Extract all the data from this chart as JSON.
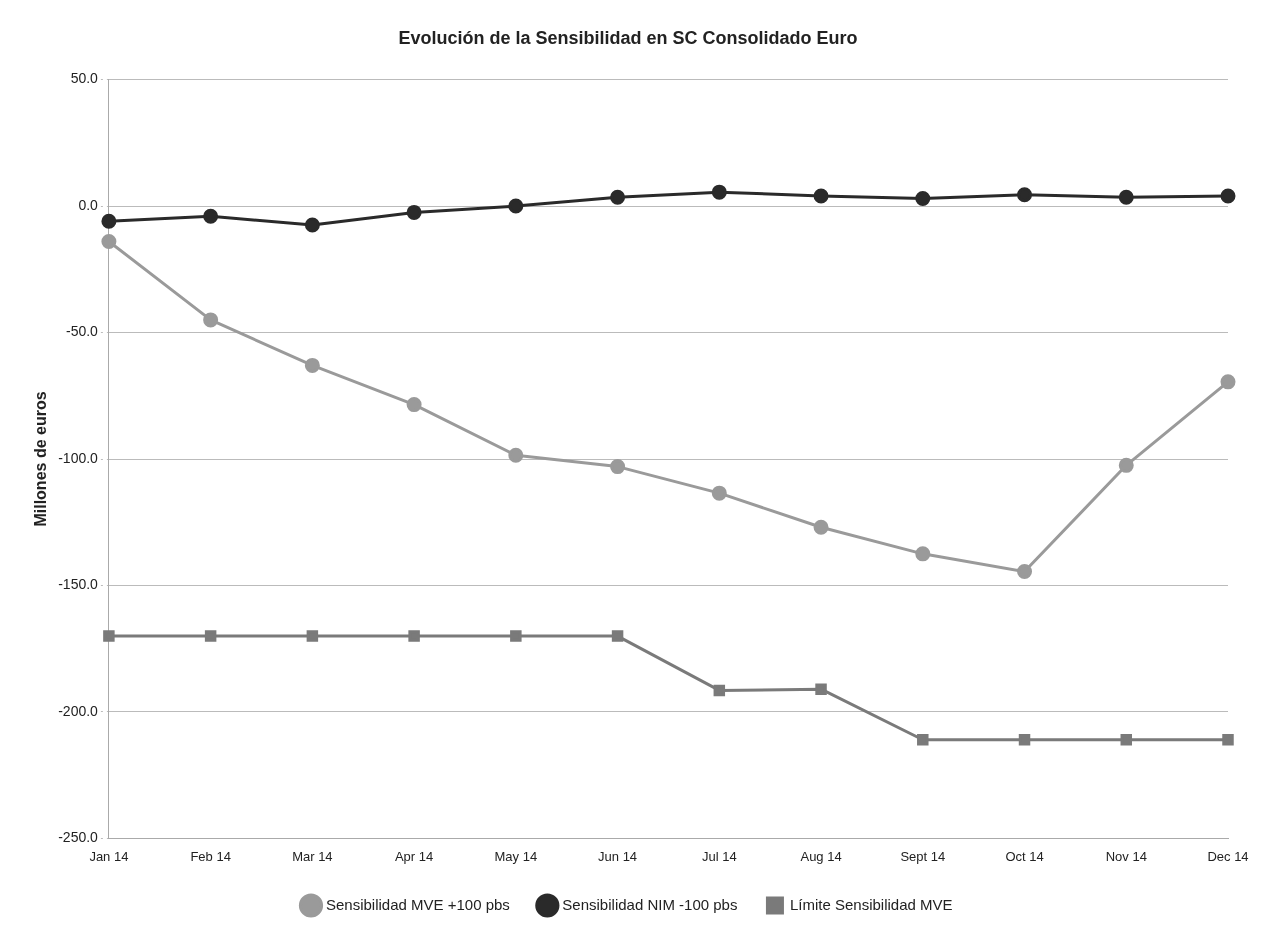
{
  "chart_data": {
    "type": "line",
    "title": "Evolución de la Sensibilidad en SC Consolidado Euro",
    "ylabel": "Millones de euros",
    "categories": [
      "Jan 14",
      "Feb 14",
      "Mar 14",
      "Apr 14",
      "May 14",
      "Jun 14",
      "Jul 14",
      "Aug 14",
      "Sept 14",
      "Oct 14",
      "Nov 14",
      "Dec 14"
    ],
    "series": [
      {
        "name": "Sensibilidad MVE +100 pbs",
        "color": "#9a9a9a",
        "marker": "circle",
        "values": [
          -14,
          -45,
          -63,
          -78.5,
          -98.5,
          -103,
          -113.5,
          -127,
          -137.5,
          -144.5,
          -102.5,
          -69.5
        ]
      },
      {
        "name": "Sensibilidad NIM -100 pbs",
        "color": "#2a2a2a",
        "marker": "circle",
        "values": [
          -6,
          -4,
          -7.5,
          -2.5,
          0,
          3.5,
          5.5,
          4,
          3,
          4.5,
          3.5,
          4
        ]
      },
      {
        "name": "Límite Sensibilidad MVE",
        "color": "#7a7a7a",
        "marker": "square",
        "values": [
          -170,
          -170,
          -170,
          -170,
          -170,
          -170,
          -191.5,
          -191,
          -211,
          -211,
          -211,
          -211
        ]
      }
    ],
    "ylim": [
      -250,
      50
    ],
    "yticks": [
      {
        "value": -250,
        "label": "-250.0"
      },
      {
        "value": -200,
        "label": "-200.0"
      },
      {
        "value": -150,
        "label": "-150.0"
      },
      {
        "value": -100,
        "label": "-100.0"
      },
      {
        "value": -50,
        "label": "-50.0"
      },
      {
        "value": 0,
        "label": "0.0"
      },
      {
        "value": 50,
        "label": "50.0"
      }
    ],
    "grid": "y",
    "legend": "bottom",
    "line_style": "solid"
  }
}
